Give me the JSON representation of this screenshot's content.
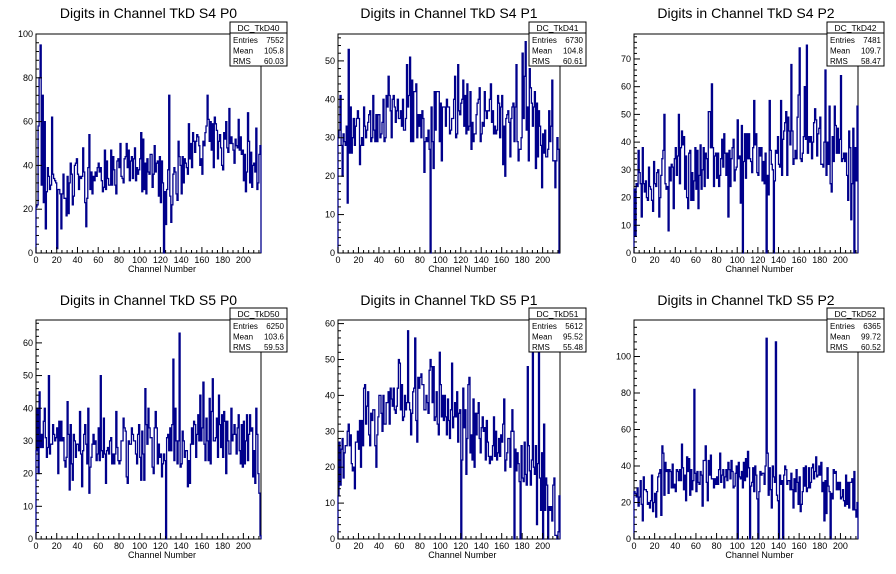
{
  "chart_data": [
    {
      "type": "histogram",
      "title": "Digits in Channel TkD S4 P0",
      "xlabel": "Channel Number",
      "ylabel": "",
      "xlim": [
        0,
        217
      ],
      "ylim": [
        0,
        100
      ],
      "xticks": [
        0,
        20,
        40,
        60,
        80,
        100,
        120,
        140,
        160,
        180,
        200
      ],
      "yticks": [
        0,
        20,
        40,
        60,
        80,
        100
      ],
      "stats": {
        "name": "DC_TkD40",
        "entries": "7552",
        "mean": "105.8",
        "rms": "60.03"
      },
      "stats_labels": [
        "Entries",
        "Mean",
        "RMS"
      ],
      "seed": 11,
      "base": [
        30,
        32,
        42,
        30,
        58,
        35
      ],
      "noise": 10,
      "jag_prob": 0.45,
      "jag_amp": 14,
      "spikes": [
        [
          2,
          58
        ],
        [
          3,
          80
        ],
        [
          4,
          95
        ],
        [
          6,
          72
        ],
        [
          8,
          60
        ],
        [
          15,
          62
        ],
        [
          20,
          2
        ],
        [
          45,
          48
        ],
        [
          110,
          45
        ],
        [
          123,
          0
        ],
        [
          128,
          72
        ]
      ],
      "series": [
        {
          "values": []
        }
      ],
      "color": "#00008b"
    },
    {
      "type": "histogram",
      "title": "Digits in Channel TkD S4 P1",
      "xlabel": "Channel Number",
      "ylabel": "",
      "xlim": [
        0,
        217
      ],
      "ylim": [
        0,
        57
      ],
      "xticks": [
        0,
        20,
        40,
        60,
        80,
        100,
        120,
        140,
        160,
        180,
        200
      ],
      "yticks": [
        0,
        10,
        20,
        30,
        40,
        50
      ],
      "stats": {
        "name": "DC_TkD41",
        "entries": "6730",
        "mean": "104.8",
        "rms": "60.61"
      },
      "stats_labels": [
        "Entries",
        "Mean",
        "RMS"
      ],
      "seed": 23,
      "base": [
        32,
        36,
        36,
        36,
        34,
        30
      ],
      "noise": 7,
      "jag_prob": 0.5,
      "jag_amp": 10,
      "spikes": [
        [
          9,
          13
        ],
        [
          10,
          53
        ],
        [
          70,
          51
        ],
        [
          90,
          0
        ],
        [
          180,
          52
        ],
        [
          183,
          55
        ],
        [
          212,
          17
        ],
        [
          216,
          0
        ]
      ],
      "series": [
        {
          "values": []
        }
      ],
      "color": "#00008b"
    },
    {
      "type": "histogram",
      "title": "Digits in Channel TkD S4 P2",
      "xlabel": "Channel Number",
      "ylabel": "",
      "xlim": [
        0,
        217
      ],
      "ylim": [
        0,
        79
      ],
      "xticks": [
        0,
        20,
        40,
        60,
        80,
        100,
        120,
        140,
        160,
        180,
        200
      ],
      "yticks": [
        0,
        10,
        20,
        30,
        40,
        50,
        60,
        70
      ],
      "stats": {
        "name": "DC_TkD42",
        "entries": "7481",
        "mean": "109.7",
        "rms": "58.47"
      },
      "stats_labels": [
        "Entries",
        "Mean",
        "RMS"
      ],
      "seed": 37,
      "base": [
        27,
        30,
        32,
        36,
        40,
        38
      ],
      "noise": 9,
      "jag_prob": 0.5,
      "jag_amp": 16,
      "spikes": [
        [
          75,
          61
        ],
        [
          105,
          0
        ],
        [
          128,
          0
        ],
        [
          135,
          0
        ],
        [
          152,
          68
        ],
        [
          160,
          74
        ],
        [
          167,
          75
        ],
        [
          185,
          66
        ],
        [
          200,
          64
        ],
        [
          210,
          12
        ],
        [
          213,
          0
        ]
      ],
      "series": [
        {
          "values": []
        }
      ],
      "color": "#00008b"
    },
    {
      "type": "histogram",
      "title": "Digits in Channel TkD S5 P0",
      "xlabel": "Channel Number",
      "ylabel": "",
      "xlim": [
        0,
        217
      ],
      "ylim": [
        0,
        67
      ],
      "xticks": [
        0,
        20,
        40,
        60,
        80,
        100,
        120,
        140,
        160,
        180,
        200
      ],
      "yticks": [
        0,
        10,
        20,
        30,
        40,
        50,
        60
      ],
      "stats": {
        "name": "DC_TkD50",
        "entries": "6250",
        "mean": "103.6",
        "rms": "59.53"
      },
      "stats_labels": [
        "Entries",
        "Mean",
        "RMS"
      ],
      "seed": 41,
      "base": [
        30,
        28,
        30,
        27,
        35,
        24
      ],
      "noise": 7,
      "jag_prob": 0.45,
      "jag_amp": 12,
      "spikes": [
        [
          3,
          45
        ],
        [
          12,
          50
        ],
        [
          62,
          50
        ],
        [
          125,
          0
        ],
        [
          132,
          55
        ],
        [
          138,
          63
        ],
        [
          215,
          14
        ],
        [
          216,
          1
        ]
      ],
      "series": [
        {
          "values": []
        }
      ],
      "color": "#00008b"
    },
    {
      "type": "histogram",
      "title": "Digits in Channel TkD S5 P1",
      "xlabel": "Channel Number",
      "ylabel": "",
      "xlim": [
        0,
        217
      ],
      "ylim": [
        0,
        61
      ],
      "xticks": [
        0,
        20,
        40,
        60,
        80,
        100,
        120,
        140,
        160,
        180,
        200
      ],
      "yticks": [
        0,
        10,
        20,
        30,
        40,
        50,
        60
      ],
      "stats": {
        "name": "DC_TkD51",
        "entries": "5612",
        "mean": "95.52",
        "rms": "55.48"
      },
      "stats_labels": [
        "Entries",
        "Mean",
        "RMS"
      ],
      "seed": 53,
      "base": [
        25,
        35,
        40,
        30,
        24,
        12
      ],
      "noise": 7,
      "jag_prob": 0.5,
      "jag_amp": 12,
      "spikes": [
        [
          68,
          58
        ],
        [
          75,
          56
        ],
        [
          120,
          0
        ],
        [
          172,
          0
        ],
        [
          178,
          0
        ],
        [
          185,
          48
        ],
        [
          190,
          52
        ],
        [
          196,
          53
        ],
        [
          200,
          0
        ],
        [
          205,
          0
        ],
        [
          210,
          15
        ],
        [
          214,
          0
        ]
      ],
      "series": [
        {
          "values": []
        }
      ],
      "color": "#00008b"
    },
    {
      "type": "histogram",
      "title": "Digits in Channel TkD S5 P2",
      "xlabel": "Channel Number",
      "ylabel": "",
      "xlim": [
        0,
        217
      ],
      "ylim": [
        0,
        120
      ],
      "xticks": [
        0,
        20,
        40,
        60,
        80,
        100,
        120,
        140,
        160,
        180,
        200
      ],
      "yticks": [
        0,
        20,
        40,
        60,
        80,
        100
      ],
      "stats": {
        "name": "DC_TkD52",
        "entries": "6365",
        "mean": "99.72",
        "rms": "60.52"
      },
      "stats_labels": [
        "Entries",
        "Mean",
        "RMS"
      ],
      "seed": 67,
      "base": [
        25,
        34,
        36,
        32,
        34,
        24
      ],
      "noise": 9,
      "jag_prob": 0.45,
      "jag_amp": 14,
      "spikes": [
        [
          58,
          82
        ],
        [
          100,
          0
        ],
        [
          112,
          0
        ],
        [
          120,
          0
        ],
        [
          128,
          110
        ],
        [
          137,
          108
        ],
        [
          140,
          0
        ],
        [
          144,
          0
        ],
        [
          190,
          0
        ],
        [
          215,
          12
        ]
      ],
      "series": [
        {
          "values": []
        }
      ],
      "color": "#00008b"
    }
  ]
}
